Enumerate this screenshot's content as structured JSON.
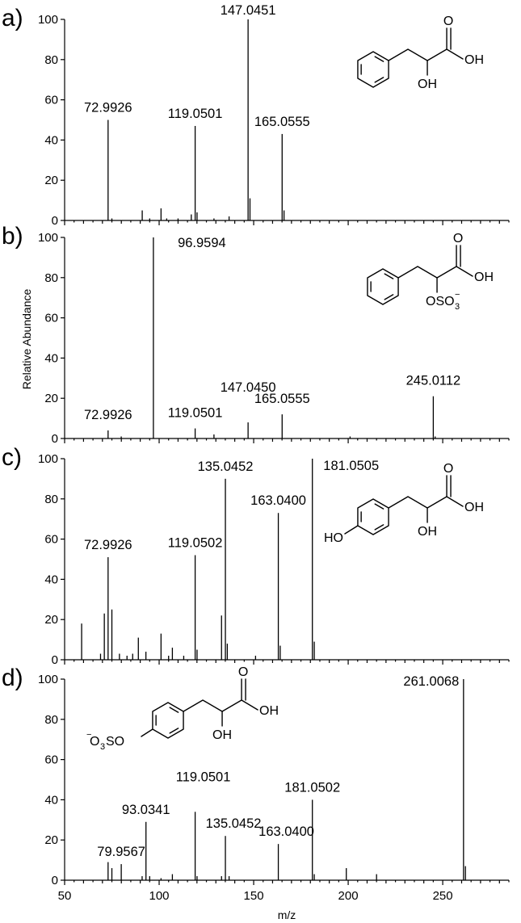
{
  "figure": {
    "ylabel": "Relative Abundance",
    "xlabel": "m/z"
  },
  "chart_data": [
    {
      "type": "bar",
      "panel": "a)",
      "xlim": [
        50,
        285
      ],
      "ylim": [
        0,
        100
      ],
      "y_ticks": [
        "0",
        "20",
        "40",
        "60",
        "80",
        "100"
      ],
      "peaks": [
        {
          "mz": 72.9926,
          "intensity": 50,
          "label": "72.9926"
        },
        {
          "mz": 75.0,
          "intensity": 1,
          "label": ""
        },
        {
          "mz": 91.05,
          "intensity": 5,
          "label": ""
        },
        {
          "mz": 95.0,
          "intensity": 1,
          "label": ""
        },
        {
          "mz": 101.0,
          "intensity": 6,
          "label": ""
        },
        {
          "mz": 104.0,
          "intensity": 1,
          "label": ""
        },
        {
          "mz": 110.0,
          "intensity": 1,
          "label": ""
        },
        {
          "mz": 117.0,
          "intensity": 3,
          "label": ""
        },
        {
          "mz": 119.0501,
          "intensity": 47,
          "label": "119.0501"
        },
        {
          "mz": 120.05,
          "intensity": 4,
          "label": ""
        },
        {
          "mz": 129.0,
          "intensity": 1,
          "label": ""
        },
        {
          "mz": 137.0,
          "intensity": 2,
          "label": ""
        },
        {
          "mz": 147.0451,
          "intensity": 100,
          "label": "147.0451"
        },
        {
          "mz": 148.05,
          "intensity": 11,
          "label": ""
        },
        {
          "mz": 165.0555,
          "intensity": 43,
          "label": "165.0555"
        },
        {
          "mz": 166.06,
          "intensity": 5,
          "label": ""
        }
      ],
      "structure": "phenyllactic-acid",
      "structure_labels": {
        "oh_top": "OH",
        "oh_bottom": "OH",
        "o": "O"
      }
    },
    {
      "type": "bar",
      "panel": "b)",
      "xlim": [
        50,
        285
      ],
      "ylim": [
        0,
        100
      ],
      "y_ticks": [
        "0",
        "20",
        "40",
        "60",
        "80",
        "100"
      ],
      "peaks": [
        {
          "mz": 72.9926,
          "intensity": 4,
          "label": "72.9926"
        },
        {
          "mz": 79.95,
          "intensity": 1,
          "label": ""
        },
        {
          "mz": 96.9594,
          "intensity": 100,
          "label": "96.9594"
        },
        {
          "mz": 119.0501,
          "intensity": 5,
          "label": "119.0501"
        },
        {
          "mz": 129.0,
          "intensity": 2,
          "label": ""
        },
        {
          "mz": 147.045,
          "intensity": 8,
          "label": "147.0450"
        },
        {
          "mz": 165.0555,
          "intensity": 12,
          "label": "165.0555"
        },
        {
          "mz": 201.0,
          "intensity": 1,
          "label": ""
        },
        {
          "mz": 245.0112,
          "intensity": 21,
          "label": "245.0112"
        },
        {
          "mz": 246.01,
          "intensity": 1,
          "label": ""
        }
      ],
      "structure": "phenyllactic-acid-sulfate",
      "structure_labels": {
        "oh_top": "OH",
        "o": "O",
        "oso3": "OSO",
        "sub": "3",
        "charge": "−"
      }
    },
    {
      "type": "bar",
      "panel": "c)",
      "xlim": [
        50,
        285
      ],
      "ylim": [
        0,
        100
      ],
      "y_ticks": [
        "0",
        "20",
        "40",
        "60",
        "80",
        "100"
      ],
      "peaks": [
        {
          "mz": 59.0,
          "intensity": 18,
          "label": ""
        },
        {
          "mz": 69.0,
          "intensity": 3,
          "label": ""
        },
        {
          "mz": 71.0,
          "intensity": 23,
          "label": ""
        },
        {
          "mz": 72.9926,
          "intensity": 51,
          "label": "72.9926"
        },
        {
          "mz": 75.0,
          "intensity": 25,
          "label": ""
        },
        {
          "mz": 79.0,
          "intensity": 3,
          "label": ""
        },
        {
          "mz": 83.0,
          "intensity": 2,
          "label": ""
        },
        {
          "mz": 86.0,
          "intensity": 3,
          "label": ""
        },
        {
          "mz": 89.0,
          "intensity": 11,
          "label": ""
        },
        {
          "mz": 93.0,
          "intensity": 4,
          "label": ""
        },
        {
          "mz": 101.0,
          "intensity": 13,
          "label": ""
        },
        {
          "mz": 105.0,
          "intensity": 2,
          "label": ""
        },
        {
          "mz": 107.0,
          "intensity": 6,
          "label": ""
        },
        {
          "mz": 113.0,
          "intensity": 2,
          "label": ""
        },
        {
          "mz": 119.0502,
          "intensity": 52,
          "label": "119.0502"
        },
        {
          "mz": 120.05,
          "intensity": 5,
          "label": ""
        },
        {
          "mz": 133.0,
          "intensity": 22,
          "label": ""
        },
        {
          "mz": 135.0452,
          "intensity": 90,
          "label": "135.0452"
        },
        {
          "mz": 136.05,
          "intensity": 8,
          "label": ""
        },
        {
          "mz": 151.0,
          "intensity": 2,
          "label": ""
        },
        {
          "mz": 163.04,
          "intensity": 73,
          "label": "163.0400"
        },
        {
          "mz": 164.04,
          "intensity": 7,
          "label": ""
        },
        {
          "mz": 181.0505,
          "intensity": 100,
          "label": "181.0505"
        },
        {
          "mz": 182.05,
          "intensity": 9,
          "label": ""
        }
      ],
      "structure": "hydroxyphenyllactic-acid",
      "structure_labels": {
        "oh_top": "OH",
        "oh_bottom": "OH",
        "o": "O",
        "ho": "HO"
      }
    },
    {
      "type": "bar",
      "panel": "d)",
      "xlim": [
        50,
        285
      ],
      "ylim": [
        0,
        100
      ],
      "y_ticks": [
        "0",
        "20",
        "40",
        "60",
        "80",
        "100"
      ],
      "x_ticks": [
        "50",
        "100",
        "150",
        "200",
        "250"
      ],
      "peaks": [
        {
          "mz": 72.99,
          "intensity": 9,
          "label": ""
        },
        {
          "mz": 75.0,
          "intensity": 6,
          "label": ""
        },
        {
          "mz": 79.9567,
          "intensity": 8,
          "label": "79.9567"
        },
        {
          "mz": 91.0,
          "intensity": 2,
          "label": ""
        },
        {
          "mz": 93.0341,
          "intensity": 29,
          "label": "93.0341"
        },
        {
          "mz": 95.0,
          "intensity": 2,
          "label": ""
        },
        {
          "mz": 101.0,
          "intensity": 1,
          "label": ""
        },
        {
          "mz": 107.0,
          "intensity": 3,
          "label": ""
        },
        {
          "mz": 119.0501,
          "intensity": 34,
          "label": "119.0501"
        },
        {
          "mz": 120.05,
          "intensity": 2,
          "label": ""
        },
        {
          "mz": 133.0,
          "intensity": 2,
          "label": ""
        },
        {
          "mz": 135.0452,
          "intensity": 22,
          "label": "135.0452"
        },
        {
          "mz": 137.0,
          "intensity": 2,
          "label": ""
        },
        {
          "mz": 163.04,
          "intensity": 18,
          "label": "163.0400"
        },
        {
          "mz": 181.0502,
          "intensity": 40,
          "label": "181.0502"
        },
        {
          "mz": 182.05,
          "intensity": 3,
          "label": ""
        },
        {
          "mz": 199.0,
          "intensity": 6,
          "label": ""
        },
        {
          "mz": 215.0,
          "intensity": 3,
          "label": ""
        },
        {
          "mz": 261.0068,
          "intensity": 100,
          "label": "261.0068"
        },
        {
          "mz": 262.01,
          "intensity": 7,
          "label": ""
        }
      ],
      "structure": "hydroxyphenyllactic-acid-sulfate",
      "structure_labels": {
        "oh_top": "OH",
        "oh_bottom": "OH",
        "o": "O",
        "o3so": "O",
        "o3so_sub": "3",
        "o3so_rest": "SO",
        "charge": "−"
      }
    }
  ]
}
